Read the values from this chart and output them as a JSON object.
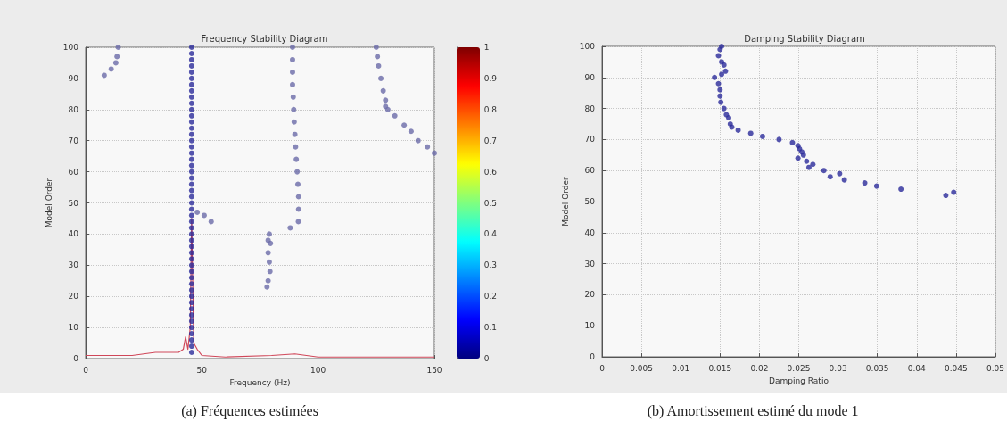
{
  "chart_data": [
    {
      "type": "scatter",
      "title": "Frequency Stability Diagram",
      "xlabel": "Frequency (Hz)",
      "ylabel": "Model Order",
      "annotations": [
        "(a) Fréquences estimées"
      ],
      "xlim": [
        0,
        150
      ],
      "xticks": [
        0,
        50,
        100,
        150
      ],
      "ylim": [
        0,
        100
      ],
      "yticks": [
        0,
        10,
        20,
        30,
        40,
        50,
        60,
        70,
        80,
        90,
        100
      ],
      "clim": [
        0,
        1
      ],
      "cticks": [
        0,
        0.1,
        0.2,
        0.3,
        0.4,
        0.5,
        0.6,
        0.7,
        0.8,
        0.9,
        1
      ],
      "grid": true,
      "marker": "circle",
      "series": [
        {
          "color": "#2a2a9a",
          "x": [
            45.6,
            45.6,
            45.6,
            45.6,
            45.6,
            45.6,
            45.6,
            45.6,
            45.6,
            45.6,
            45.6,
            45.6,
            45.6,
            45.6,
            45.6,
            45.6,
            45.6,
            45.6,
            45.6,
            45.6,
            45.6,
            45.6,
            45.6,
            45.6,
            45.6,
            45.6,
            45.6,
            45.6,
            45.6,
            45.6,
            45.6,
            45.6,
            45.6,
            45.6,
            45.6,
            45.6,
            45.6,
            45.6,
            45.6,
            45.6,
            45.6,
            45.6,
            45.6,
            45.6,
            45.6,
            45.6,
            45.6,
            45.6,
            45.6,
            45.6
          ],
          "values": [
            2,
            4,
            6,
            8,
            10,
            12,
            14,
            16,
            18,
            20,
            22,
            24,
            26,
            28,
            30,
            32,
            34,
            36,
            38,
            40,
            42,
            44,
            46,
            48,
            50,
            52,
            54,
            56,
            58,
            60,
            62,
            64,
            66,
            68,
            70,
            72,
            74,
            76,
            78,
            80,
            82,
            84,
            86,
            88,
            90,
            92,
            94,
            96,
            98,
            100
          ]
        },
        {
          "color": "#6a6aa8",
          "x": [
            89,
            89,
            89,
            89,
            89.3,
            89.5,
            89.7,
            90,
            90.3,
            90.6,
            91,
            91.3,
            91.6,
            91.6,
            91.5,
            88,
            79,
            79.5,
            78.5,
            79,
            79.3,
            78.5,
            78,
            78.5,
            14,
            13.5,
            13,
            11,
            8,
            48,
            51,
            54
          ],
          "values": [
            100,
            96,
            92,
            88,
            84,
            80,
            76,
            72,
            68,
            64,
            60,
            56,
            52,
            48,
            44,
            42,
            40,
            37,
            34,
            31,
            28,
            25,
            23,
            38,
            100,
            97,
            95,
            93,
            91,
            47,
            46,
            44
          ]
        },
        {
          "color": "#6a6aa8",
          "x": [
            125,
            125.5,
            126,
            127,
            128,
            129,
            129,
            130,
            133,
            137,
            140,
            143,
            147,
            150
          ],
          "values": [
            100,
            97,
            94,
            90,
            86,
            83,
            81,
            80,
            78,
            75,
            73,
            70,
            68,
            66
          ]
        },
        {
          "type": "line",
          "marker": "none",
          "color": "#d0485a",
          "x": [
            0,
            10,
            20,
            30,
            40,
            42,
            43,
            44,
            45,
            45.6,
            46.5,
            48,
            50,
            60,
            80,
            90,
            100,
            150
          ],
          "values": [
            1,
            1,
            1,
            2,
            2,
            3,
            7,
            3,
            10,
            45,
            5,
            3,
            1,
            0.5,
            1,
            1.5,
            0.5,
            0.5
          ]
        }
      ]
    },
    {
      "type": "scatter",
      "title": "Damping Stability Diagram",
      "xlabel": "Damping Ratio",
      "ylabel": "Model Order",
      "annotations": [
        "(b) Amortissement estimé du mode 1"
      ],
      "xlim": [
        0,
        0.05
      ],
      "xticks": [
        0,
        0.005,
        0.01,
        0.015,
        0.02,
        0.025,
        0.03,
        0.035,
        0.04,
        0.045,
        0.05
      ],
      "ylim": [
        0,
        100
      ],
      "yticks": [
        0,
        10,
        20,
        30,
        40,
        50,
        60,
        70,
        80,
        90,
        100
      ],
      "grid": true,
      "marker": "circle",
      "series": [
        {
          "color": "#2a2a9a",
          "x": [
            0.0152,
            0.015,
            0.0148,
            0.0152,
            0.0155,
            0.0157,
            0.0152,
            0.0143,
            0.0148,
            0.015,
            0.015,
            0.0151,
            0.0155,
            0.0158,
            0.0161,
            0.0163,
            0.0165,
            0.0173,
            0.0189,
            0.0204,
            0.0225,
            0.0242,
            0.0249,
            0.0251,
            0.0254,
            0.0256,
            0.0249,
            0.026,
            0.0268,
            0.0263,
            0.0282,
            0.029,
            0.0302,
            0.0308,
            0.0334,
            0.0349,
            0.038,
            0.0437,
            0.0447
          ],
          "values": [
            100,
            99,
            97,
            95,
            94,
            92,
            91,
            90,
            88,
            86,
            84,
            82,
            80,
            78,
            77,
            75,
            74,
            73,
            72,
            71,
            70,
            69,
            68,
            67,
            66,
            65,
            64,
            63,
            62,
            61,
            60,
            58,
            59,
            57,
            56,
            55,
            54,
            52,
            53
          ]
        }
      ]
    }
  ]
}
